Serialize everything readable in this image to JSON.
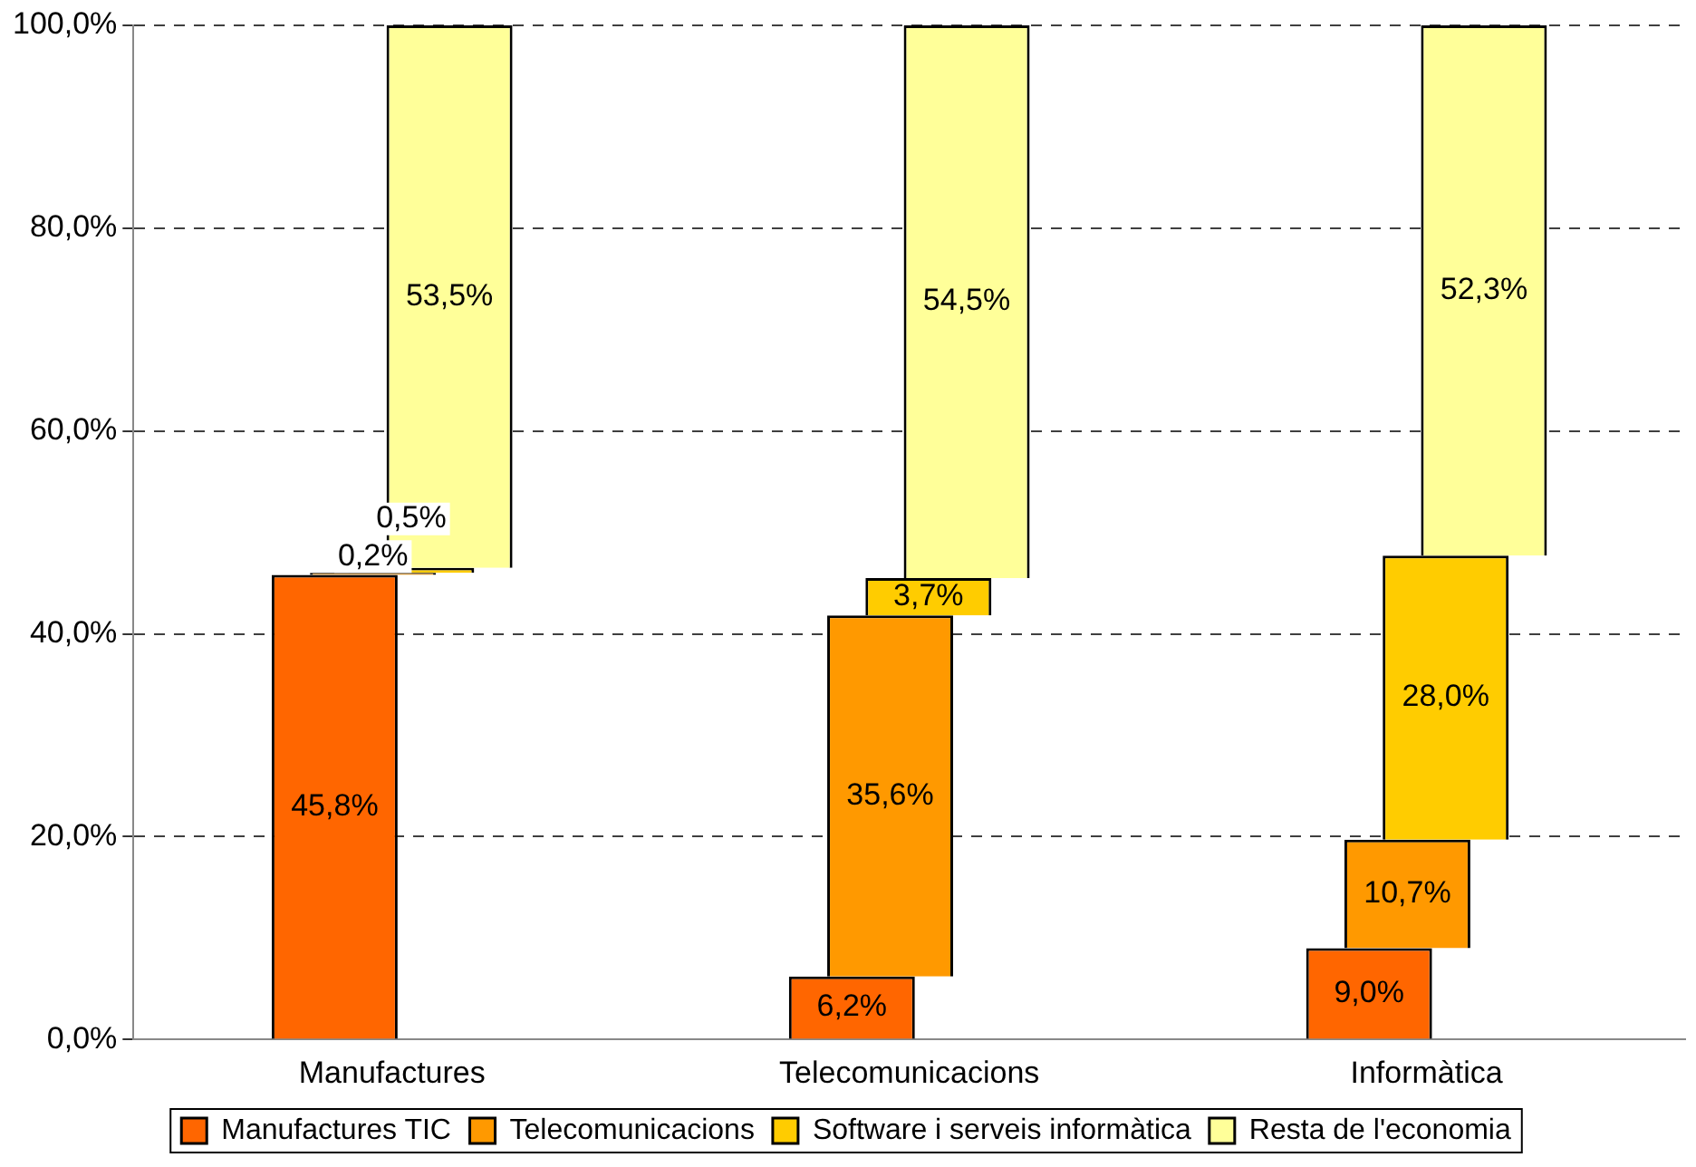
{
  "chart_data": {
    "type": "bar",
    "categories": [
      "Manufactures",
      "Telecomunicacions",
      "Informàtica"
    ],
    "series": [
      {
        "name": "Manufactures TIC",
        "color": "#ff6600",
        "values": [
          45.8,
          6.2,
          9.0
        ],
        "base": [
          0,
          0,
          0
        ],
        "value_labels": [
          "45,8%",
          "6,2%",
          "9,0%"
        ]
      },
      {
        "name": "Telecomunicacions",
        "color": "#ff9900",
        "values": [
          0.2,
          35.6,
          10.7
        ],
        "base": [
          45.8,
          6.2,
          9.0
        ],
        "value_labels": [
          "0,2%",
          "35,6%",
          "10,7%"
        ]
      },
      {
        "name": "Software i serveis informàtica",
        "color": "#ffcc00",
        "values": [
          0.5,
          3.7,
          28.0
        ],
        "base": [
          46.0,
          41.8,
          19.7
        ],
        "value_labels": [
          "0,5%",
          "3,7%",
          "28,0%"
        ]
      },
      {
        "name": "Resta de l'economia",
        "color": "#ffff99",
        "values": [
          53.5,
          54.5,
          52.3
        ],
        "base": [
          46.5,
          45.5,
          47.7
        ],
        "value_labels": [
          "53,5%",
          "54,5%",
          "52,3%"
        ]
      }
    ],
    "ylim": [
      0,
      100
    ],
    "yticks": [
      {
        "value": 0,
        "label": "0,0%"
      },
      {
        "value": 20,
        "label": "20,0%"
      },
      {
        "value": 40,
        "label": "40,0%"
      },
      {
        "value": 60,
        "label": "60,0%"
      },
      {
        "value": 80,
        "label": "80,0%"
      },
      {
        "value": 100,
        "label": "100,0%"
      }
    ],
    "grid": "y",
    "legend": "bottom"
  }
}
